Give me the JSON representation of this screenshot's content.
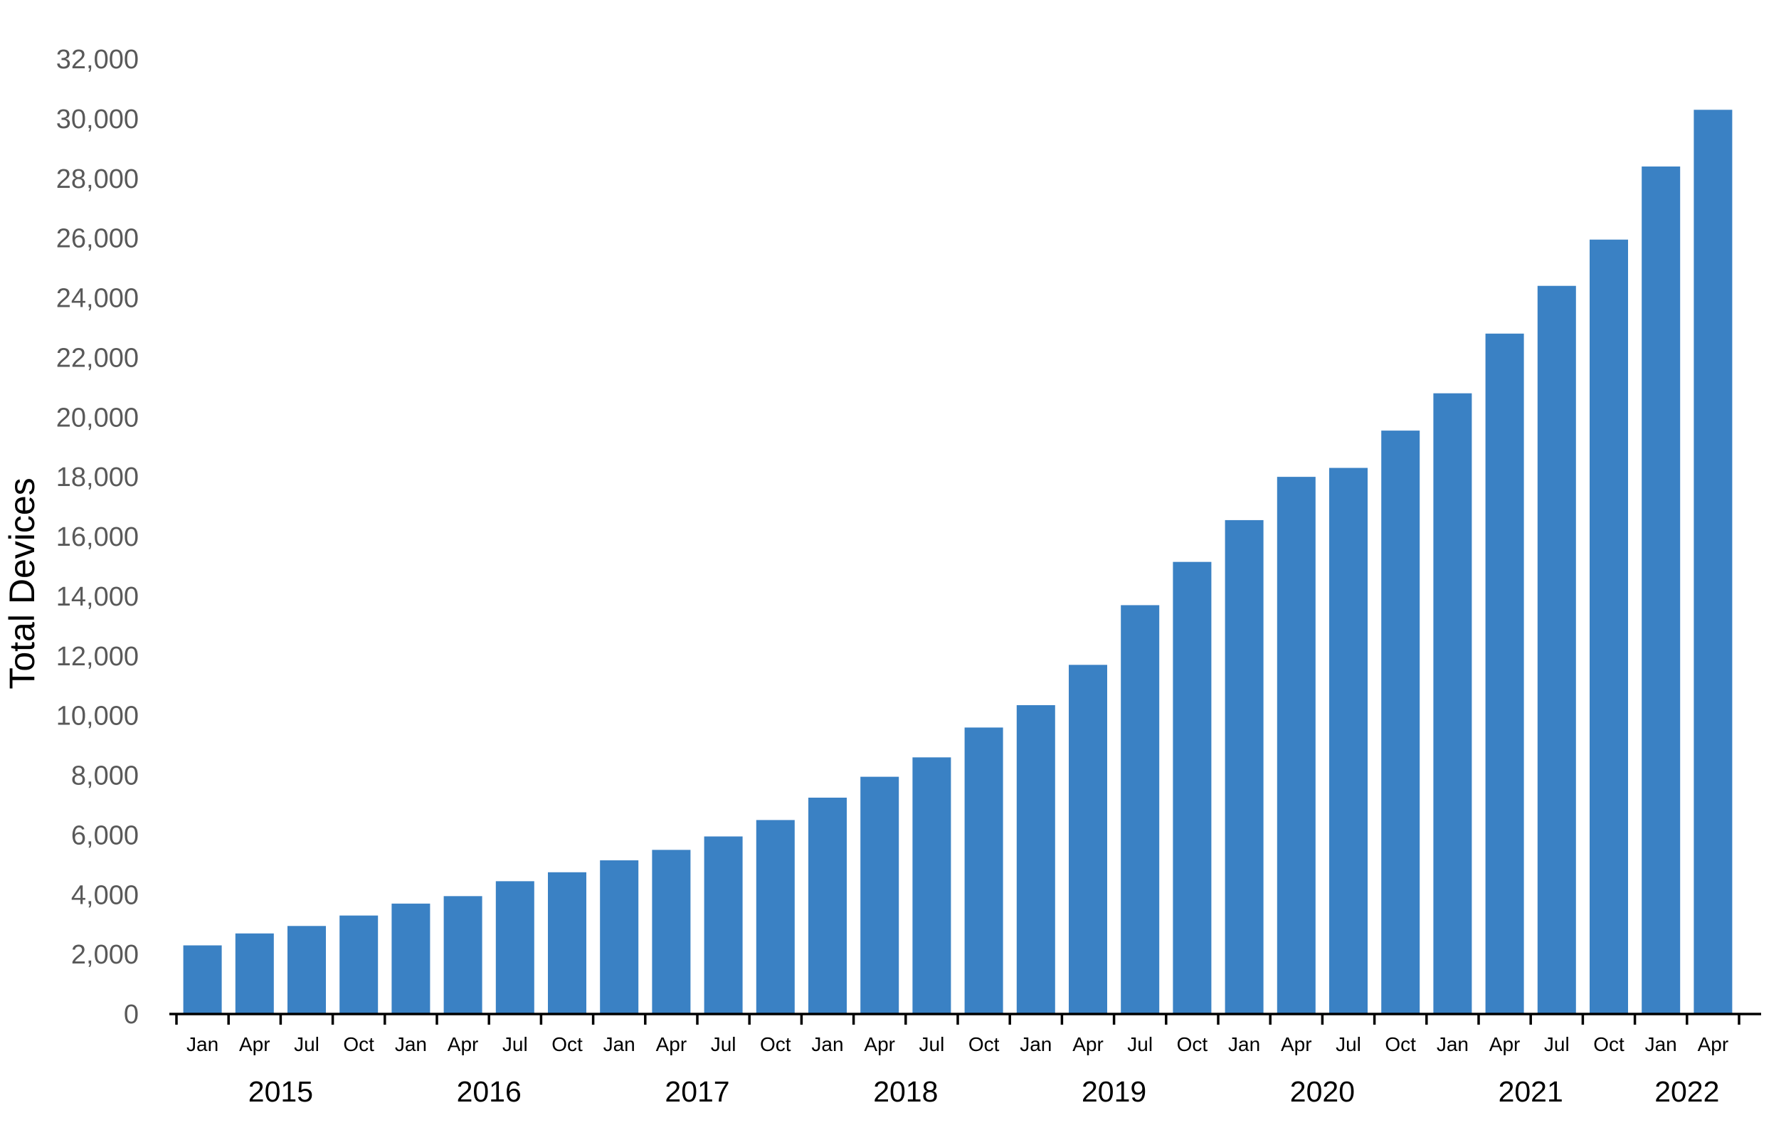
{
  "chart_data": {
    "type": "bar",
    "ylabel": "Total Devices",
    "xlabel": "",
    "ylim": [
      0,
      32000
    ],
    "yticks": [
      0,
      2000,
      4000,
      6000,
      8000,
      10000,
      12000,
      14000,
      16000,
      18000,
      20000,
      22000,
      24000,
      26000,
      28000,
      30000,
      32000
    ],
    "ytick_labels": [
      "0",
      "2,000",
      "4,000",
      "6,000",
      "8,000",
      "10,000",
      "12,000",
      "14,000",
      "16,000",
      "18,000",
      "20,000",
      "22,000",
      "24,000",
      "26,000",
      "28,000",
      "30,000",
      "32,000"
    ],
    "grid": false,
    "bar_color": "#3a81c4",
    "categories": [
      "Jan 2015",
      "Apr 2015",
      "Jul 2015",
      "Oct 2015",
      "Jan 2016",
      "Apr 2016",
      "Jul 2016",
      "Oct 2016",
      "Jan 2017",
      "Apr 2017",
      "Jul 2017",
      "Oct 2017",
      "Jan 2018",
      "Apr 2018",
      "Jul 2018",
      "Oct 2018",
      "Jan 2019",
      "Apr 2019",
      "Jul 2019",
      "Oct 2019",
      "Jan 2020",
      "Apr 2020",
      "Jul 2020",
      "Oct 2020",
      "Jan 2021",
      "Apr 2021",
      "Jul 2021",
      "Oct 2021",
      "Jan 2022",
      "Apr 2022"
    ],
    "month_labels": [
      "Jan",
      "Apr",
      "Jul",
      "Oct",
      "Jan",
      "Apr",
      "Jul",
      "Oct",
      "Jan",
      "Apr",
      "Jul",
      "Oct",
      "Jan",
      "Apr",
      "Jul",
      "Oct",
      "Jan",
      "Apr",
      "Jul",
      "Oct",
      "Jan",
      "Apr",
      "Jul",
      "Oct",
      "Jan",
      "Apr",
      "Jul",
      "Oct",
      "Jan",
      "Apr"
    ],
    "year_groups": [
      {
        "label": "2015",
        "start": 0,
        "count": 4
      },
      {
        "label": "2016",
        "start": 4,
        "count": 4
      },
      {
        "label": "2017",
        "start": 8,
        "count": 4
      },
      {
        "label": "2018",
        "start": 12,
        "count": 4
      },
      {
        "label": "2019",
        "start": 16,
        "count": 4
      },
      {
        "label": "2020",
        "start": 20,
        "count": 4
      },
      {
        "label": "2021",
        "start": 24,
        "count": 4
      },
      {
        "label": "2022",
        "start": 28,
        "count": 2
      }
    ],
    "values": [
      2300,
      2700,
      2950,
      3300,
      3700,
      3950,
      4450,
      4750,
      5150,
      5500,
      5950,
      6500,
      7250,
      7950,
      8600,
      9600,
      10350,
      11700,
      13700,
      15150,
      16550,
      18000,
      18300,
      19550,
      20800,
      22800,
      24400,
      25950,
      28400,
      30300
    ]
  }
}
